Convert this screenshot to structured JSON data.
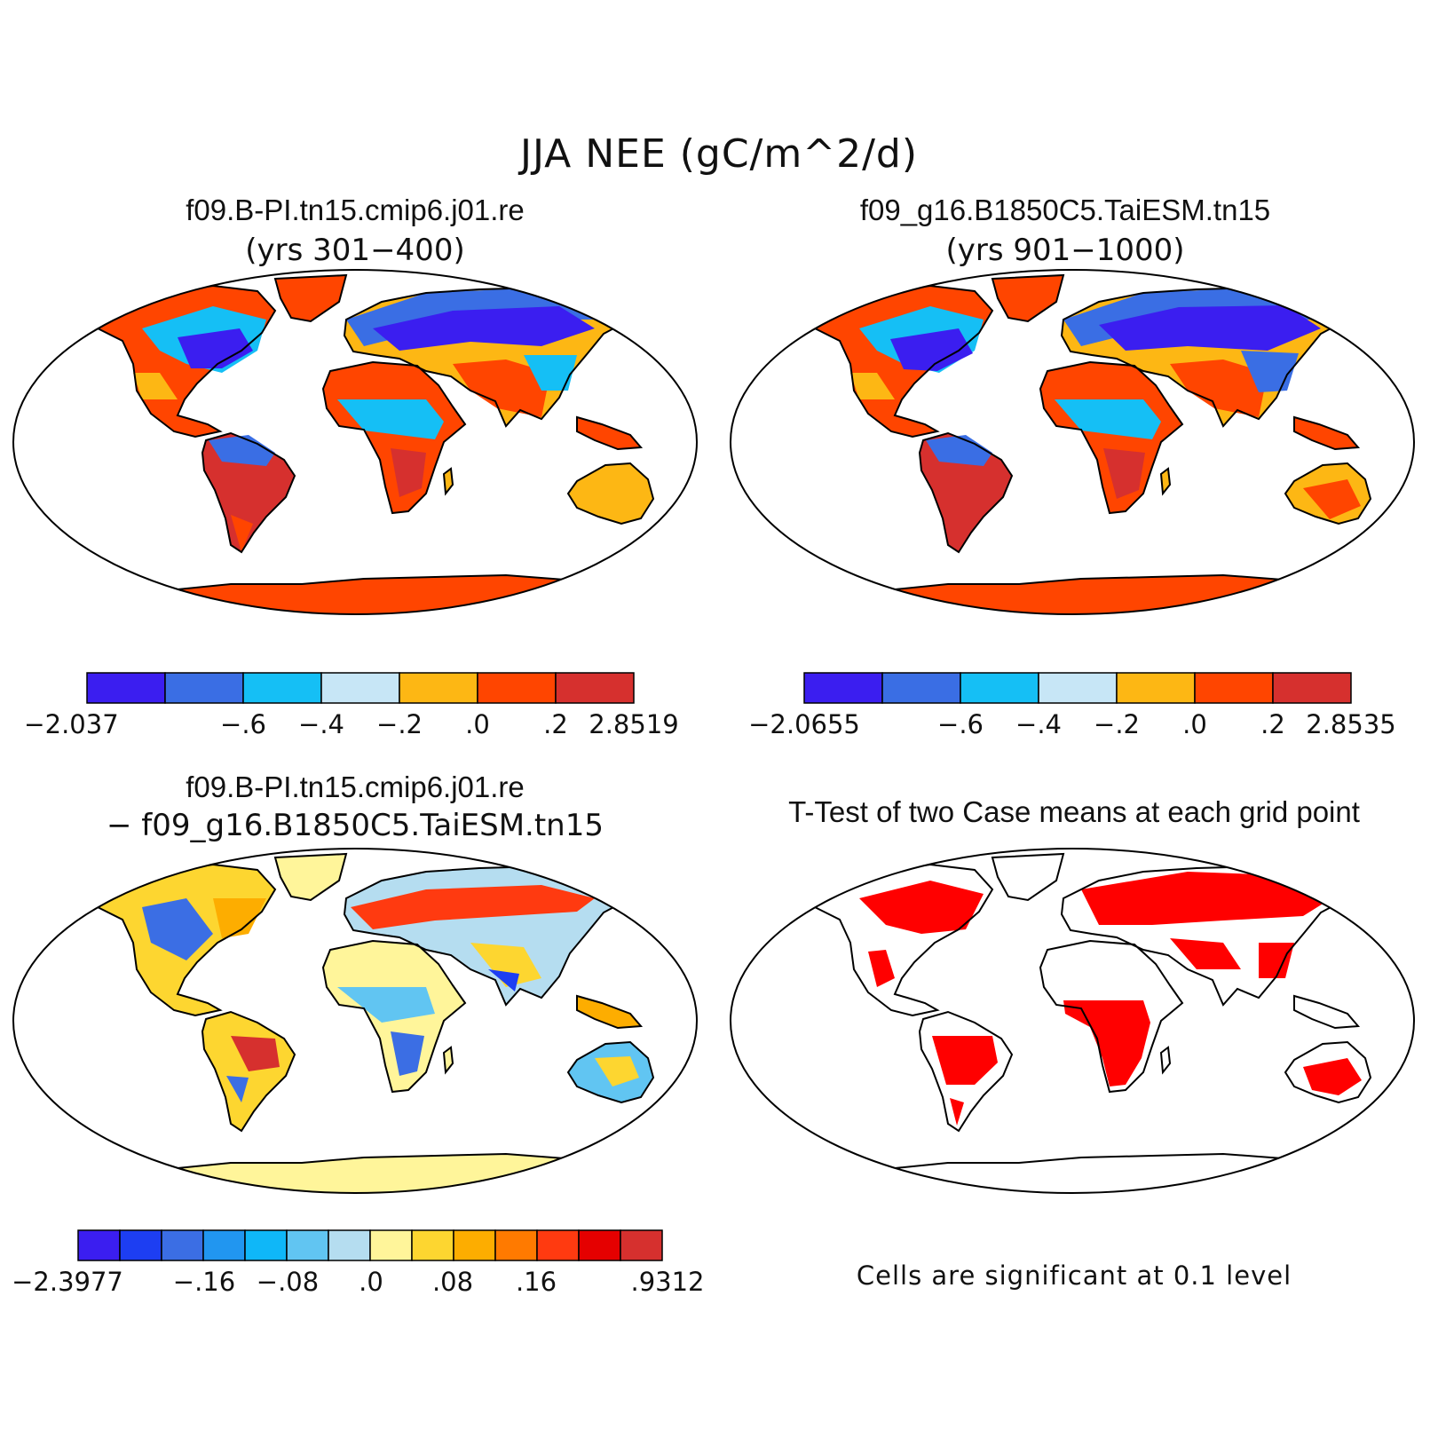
{
  "title": "JJA NEE (gC/m^2/d)",
  "colors": {
    "c1": "#3b1ef0",
    "c2": "#3a6ee4",
    "c3": "#15bff5",
    "c4": "#c7e6f6",
    "c5": "#fdb714",
    "c6": "#ff4500",
    "c7": "#d6302e",
    "d1": "#3b1ef0",
    "d2": "#1d3ef2",
    "d3": "#3b6ee4",
    "d4": "#2196f0",
    "d5": "#0fb7f8",
    "d6": "#61c5f2",
    "d7": "#b5ddf0",
    "d8": "#fff59a",
    "d9": "#fdd630",
    "d10": "#fdad00",
    "d11": "#ff7a00",
    "d12": "#ff3a10",
    "d13": "#e50000",
    "d14": "#d6302e",
    "sig": "#ff0000",
    "land": "#ffffff",
    "coast": "#000000"
  },
  "panels": [
    {
      "title": "f09.B-PI.tn15.cmip6.j01.re",
      "subtitle": "(yrs 301−400)",
      "colorbar": {
        "labels": [
          "−2.037",
          "−.6",
          "−.4",
          "−.2",
          ".0",
          ".2",
          "2.8519"
        ]
      }
    },
    {
      "title": "f09_g16.B1850C5.TaiESM.tn15",
      "subtitle": "(yrs 901−1000)",
      "colorbar": {
        "labels": [
          "−2.0655",
          "−.6",
          "−.4",
          "−.2",
          ".0",
          ".2",
          "2.8535"
        ]
      }
    },
    {
      "title": "f09.B-PI.tn15.cmip6.j01.re",
      "subtitle": "− f09_g16.B1850C5.TaiESM.tn15",
      "colorbar": {
        "labels": [
          "−2.3977",
          "−.16",
          "−.08",
          ".0",
          ".08",
          ".16",
          ".9312"
        ]
      }
    },
    {
      "title": "T-Test of two Case means at each grid point",
      "note": "Cells are significant at 0.1 level"
    }
  ]
}
